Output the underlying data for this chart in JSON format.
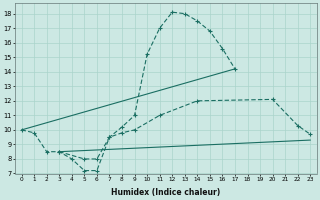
{
  "xlabel": "Humidex (Indice chaleur)",
  "background_color": "#cce8e3",
  "grid_color": "#aad4cc",
  "line_color": "#1a6e62",
  "xlim": [
    -0.5,
    23.5
  ],
  "ylim": [
    7,
    18.7
  ],
  "curve1_x": [
    0,
    1,
    2,
    3,
    4,
    5,
    6,
    7,
    8,
    9,
    10,
    11,
    12,
    13,
    14,
    15,
    16,
    17
  ],
  "curve1_y": [
    10.0,
    9.8,
    8.5,
    8.5,
    8.0,
    7.2,
    7.2,
    9.5,
    10.2,
    11.0,
    15.2,
    17.0,
    18.1,
    18.0,
    17.5,
    16.8,
    15.6,
    14.2
  ],
  "curve2_x": [
    0,
    17
  ],
  "curve2_y": [
    10.0,
    14.2
  ],
  "curve3_x": [
    3,
    5,
    6,
    7,
    8,
    9,
    11,
    14,
    20,
    22,
    23
  ],
  "curve3_y": [
    8.5,
    8.0,
    8.0,
    9.5,
    9.8,
    10.0,
    11.0,
    12.0,
    12.1,
    10.3,
    9.7
  ],
  "curve4_x": [
    3,
    23
  ],
  "curve4_y": [
    8.5,
    9.3
  ]
}
